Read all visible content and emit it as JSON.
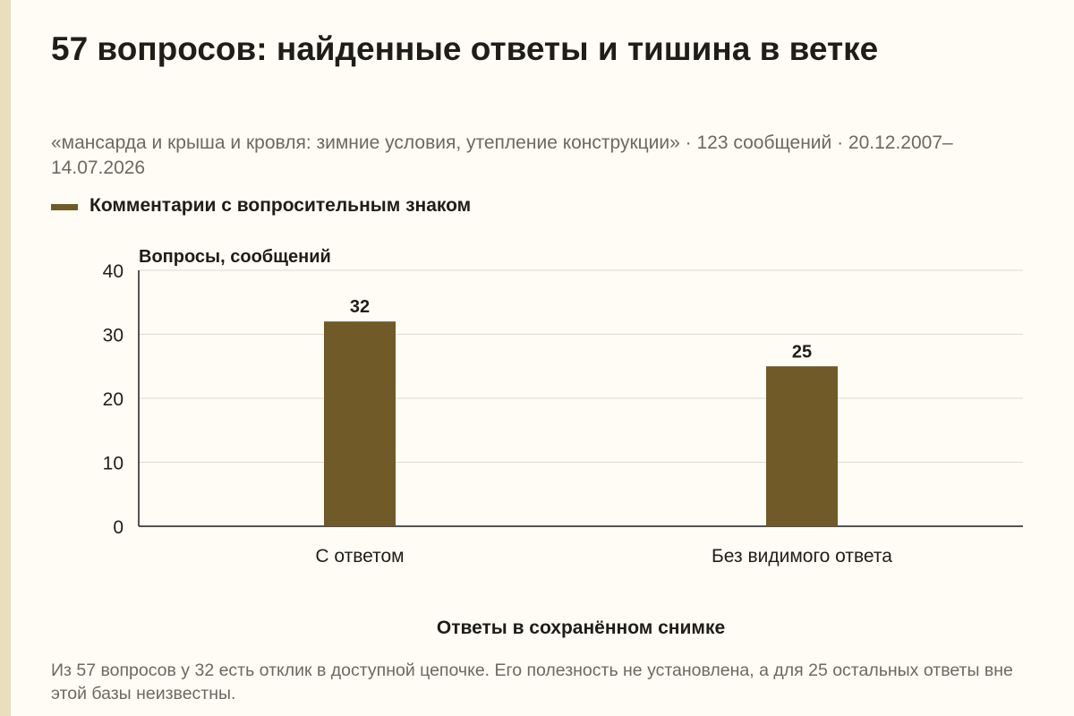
{
  "header": {
    "title": "57 вопросов: найденные ответы и тишина в ветке",
    "subtitle": "«мансарда и крыша и кровля: зимние условия, утепление конструкции» · 123 сообщений · 20.12.2007–14.07.2026"
  },
  "footer": {
    "note": "Из 57 вопросов у 32 есть отклик в доступной цепочке. Его полезность не установлена, а для 25 остальных ответы вне этой базы неизвестны."
  },
  "colors": {
    "bar": "#705a28",
    "grid": "#dcdad2",
    "axis": "#1f1d17",
    "muted_text": "#6c6a5f",
    "background": "#fefcf5"
  },
  "chart_data": {
    "type": "bar",
    "title": "57 вопросов: найденные ответы и тишина в ветке",
    "xlabel": "Ответы в сохранённом снимке",
    "ylabel": "Вопросы, сообщений",
    "categories": [
      "С ответом",
      "Без видимого ответа"
    ],
    "series": [
      {
        "name": "Комментарии с вопросительным знаком",
        "values": [
          32,
          25
        ]
      }
    ],
    "ylim": [
      0,
      40
    ],
    "yticks": [
      0,
      10,
      20,
      30,
      40
    ],
    "grid": true,
    "legend": "top-left",
    "data_labels": true
  }
}
